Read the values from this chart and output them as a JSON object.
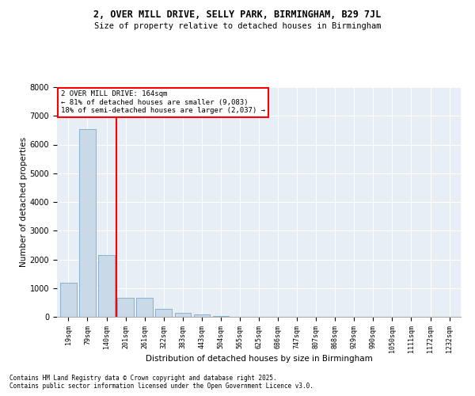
{
  "title1": "2, OVER MILL DRIVE, SELLY PARK, BIRMINGHAM, B29 7JL",
  "title2": "Size of property relative to detached houses in Birmingham",
  "xlabel": "Distribution of detached houses by size in Birmingham",
  "ylabel": "Number of detached properties",
  "bar_color": "#c9d9e8",
  "bar_edge_color": "#7aaac8",
  "vline_color": "red",
  "vline_x": 2.5,
  "annotation_title": "2 OVER MILL DRIVE: 164sqm",
  "annotation_line1": "← 81% of detached houses are smaller (9,083)",
  "annotation_line2": "18% of semi-detached houses are larger (2,037) →",
  "categories": [
    "19sqm",
    "79sqm",
    "140sqm",
    "201sqm",
    "261sqm",
    "322sqm",
    "383sqm",
    "443sqm",
    "504sqm",
    "565sqm",
    "625sqm",
    "686sqm",
    "747sqm",
    "807sqm",
    "868sqm",
    "929sqm",
    "990sqm",
    "1050sqm",
    "1111sqm",
    "1172sqm",
    "1232sqm"
  ],
  "values": [
    1200,
    6550,
    2150,
    650,
    650,
    280,
    150,
    70,
    30,
    0,
    0,
    0,
    0,
    0,
    0,
    0,
    0,
    0,
    0,
    0,
    0
  ],
  "ylim": [
    0,
    8000
  ],
  "yticks": [
    0,
    1000,
    2000,
    3000,
    4000,
    5000,
    6000,
    7000,
    8000
  ],
  "footnote1": "Contains HM Land Registry data © Crown copyright and database right 2025.",
  "footnote2": "Contains public sector information licensed under the Open Government Licence v3.0."
}
